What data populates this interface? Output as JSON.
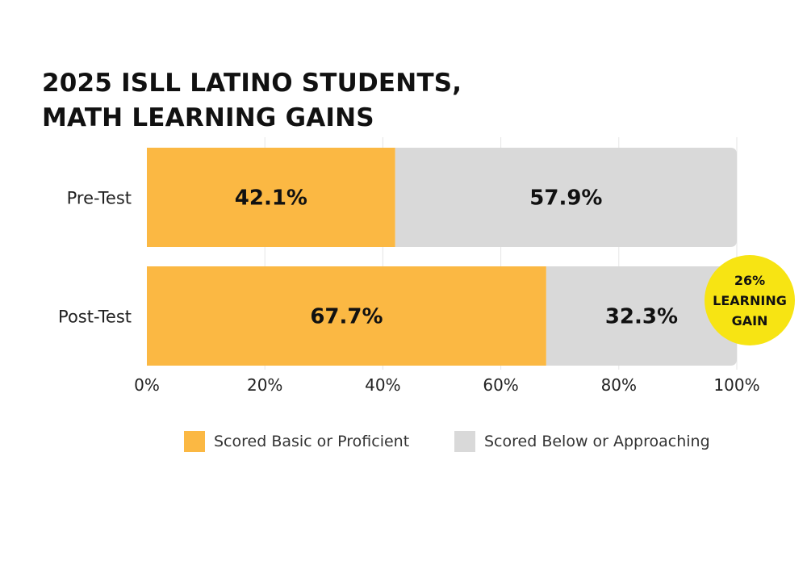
{
  "title": {
    "line1": "2025 ISLL LATINO STUDENTS,",
    "line2": "MATH LEARNING GAINS"
  },
  "colors": {
    "proficient": "#FBB843",
    "below": "#D9D9D9",
    "badge": "#F7E413",
    "text": "#111111",
    "grid": "#E6E6E6"
  },
  "chart_data": {
    "type": "bar",
    "orientation": "horizontal",
    "stacked": true,
    "categories": [
      "Pre-Test",
      "Post-Test"
    ],
    "series": [
      {
        "name": "Scored Basic or Proficient",
        "values": [
          42.1,
          67.7
        ],
        "labels": [
          "42.1%",
          "67.7%"
        ]
      },
      {
        "name": "Scored Below or Approaching",
        "values": [
          57.9,
          32.3
        ],
        "labels": [
          "57.9%",
          "32.3%"
        ]
      }
    ],
    "xlim": [
      0,
      100
    ],
    "xticks": [
      0,
      20,
      40,
      60,
      80,
      100
    ],
    "xtick_labels": [
      "0%",
      "20%",
      "40%",
      "60%",
      "80%",
      "100%"
    ],
    "grid": true,
    "legend_position": "bottom"
  },
  "legend": [
    {
      "label": "Scored Basic or Proficient"
    },
    {
      "label": "Scored Below or Approaching"
    }
  ],
  "badge": {
    "line1": "26%",
    "line2": "LEARNING",
    "line3": "GAIN"
  }
}
